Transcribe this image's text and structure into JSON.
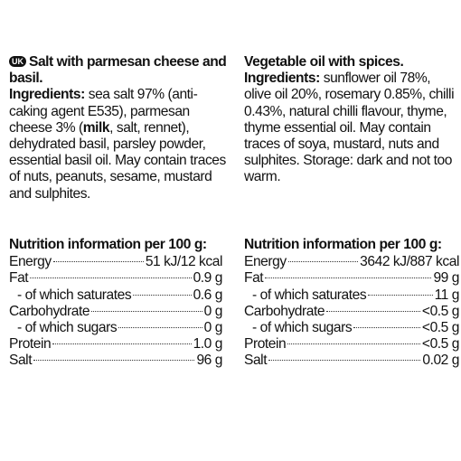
{
  "left": {
    "badge": "UK",
    "title": "Salt with parmesan cheese and basil.",
    "ingredients_label": "Ingredients:",
    "ingredients_part1": " sea salt 97% (anti-caking agent E535), parmesan cheese 3% (",
    "allergen1": "milk",
    "ingredients_part2": ", salt, rennet), dehydrated basil, parsley powder, essential basil oil. May contain traces of nuts, peanuts, sesame, mustard and sulphites.",
    "nutrition_heading": "Nutrition information per 100 g:",
    "nutrition": [
      {
        "label": "Energy",
        "value": "51 kJ/12 kcal",
        "indent": false
      },
      {
        "label": "Fat",
        "value": "0.9 g",
        "indent": false
      },
      {
        "label": "- of which saturates",
        "value": "0.6 g",
        "indent": true
      },
      {
        "label": "Carbohydrate",
        "value": "0 g",
        "indent": false
      },
      {
        "label": "- of which sugars",
        "value": "0 g",
        "indent": true
      },
      {
        "label": "Protein",
        "value": "1.0 g",
        "indent": false
      },
      {
        "label": "Salt",
        "value": "96 g",
        "indent": false
      }
    ]
  },
  "right": {
    "title": "Vegetable oil with spices.",
    "ingredients_label": "Ingredients:",
    "ingredients_text": " sunflower oil 78%, olive oil 20%, rosemary 0.85%, chilli 0.43%, natural chilli flavour, thyme, thyme essential oil. May contain traces of soya, mustard, nuts and sulphites. Storage: dark and not too warm.",
    "nutrition_heading": "Nutrition information per 100 g:",
    "nutrition": [
      {
        "label": "Energy",
        "value": "3642 kJ/887 kcal",
        "indent": false
      },
      {
        "label": "Fat",
        "value": "99 g",
        "indent": false
      },
      {
        "label": "- of which saturates",
        "value": "11 g",
        "indent": true
      },
      {
        "label": "Carbohydrate",
        "value": "<0.5 g",
        "indent": false
      },
      {
        "label": "- of which sugars",
        "value": "<0.5 g",
        "indent": true
      },
      {
        "label": "Protein",
        "value": "<0.5 g",
        "indent": false
      },
      {
        "label": "Salt",
        "value": "0.02 g",
        "indent": false
      }
    ]
  }
}
